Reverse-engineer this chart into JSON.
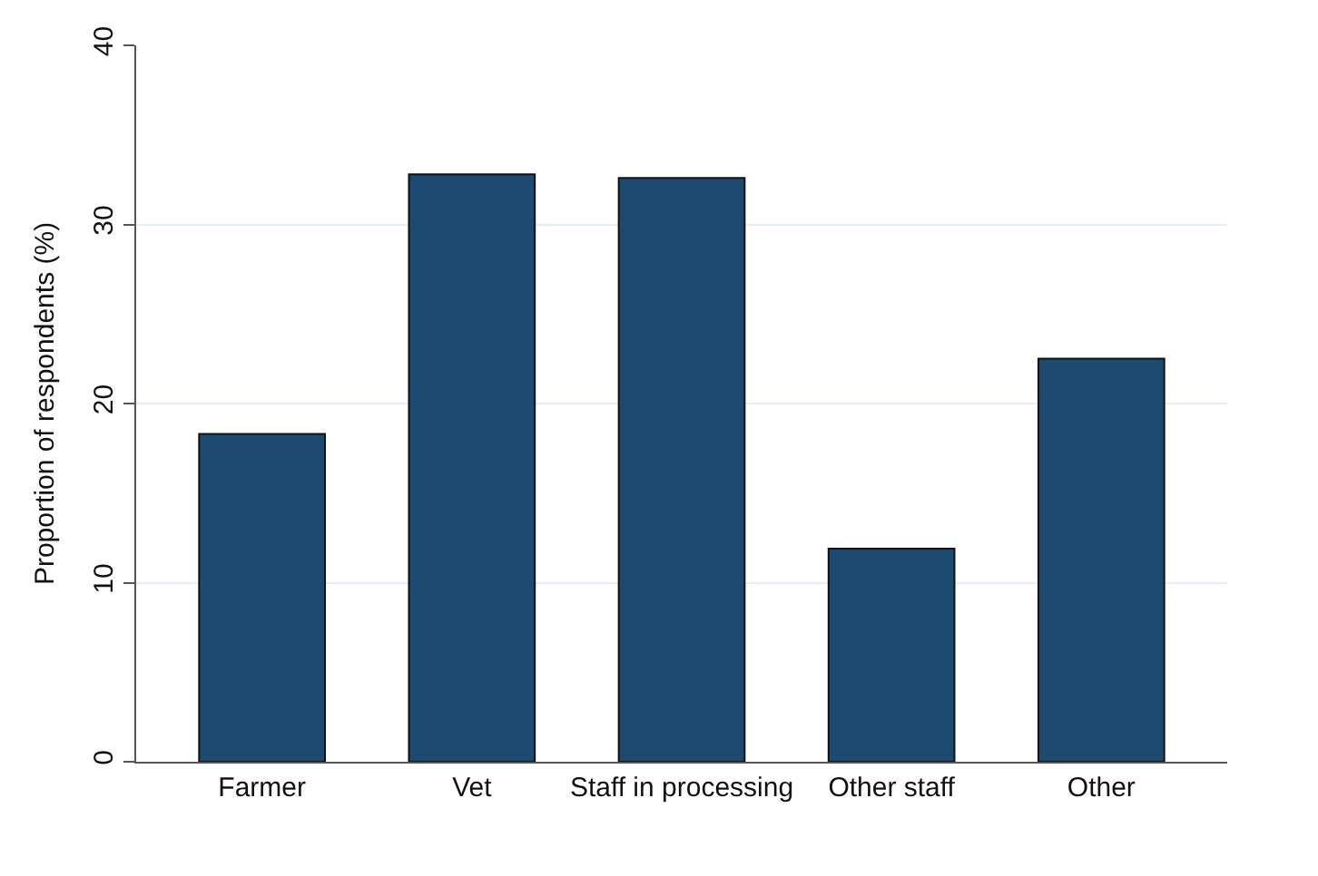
{
  "chart_data": {
    "type": "bar",
    "ylabel": "Proportion of respondents (%)",
    "categories": [
      "Farmer",
      "Vet",
      "Staff in processing",
      "Other staff",
      "Other"
    ],
    "values": [
      18.3,
      32.8,
      32.6,
      11.9,
      22.5
    ],
    "color": "#1c4a70",
    "ylim": [
      0,
      40
    ],
    "yticks": [
      0,
      10,
      20,
      30,
      40
    ],
    "grid": "y"
  }
}
